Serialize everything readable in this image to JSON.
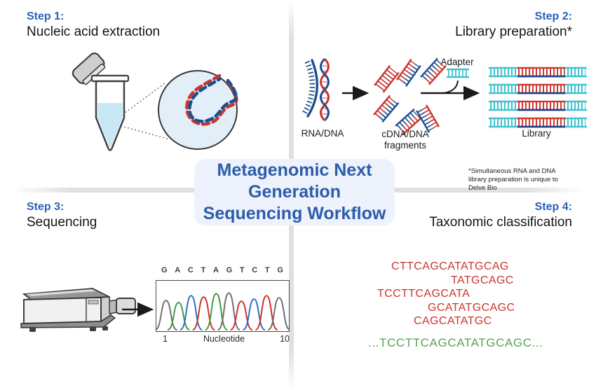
{
  "workflow": {
    "title_lines": [
      "Metagenomic Next",
      "Generation",
      "Sequencing Workflow"
    ],
    "accent_color": "#2a62b8",
    "card_bg": "#edf2fc"
  },
  "steps": {
    "step1": {
      "label": "Step 1:",
      "title": "Nucleic acid extraction"
    },
    "step2": {
      "label": "Step 2:",
      "title": "Library preparation*",
      "items": {
        "rna_dna": "RNA/DNA",
        "fragments": "cDNA/DNA fragments",
        "adapter": "Adapter",
        "library": "Library"
      },
      "footnote": "*Simultaneous RNA and DNA library preparation is unique to Delve Bio"
    },
    "step3": {
      "label": "Step 3:",
      "title": "Sequencing",
      "chromatogram": {
        "sequence": [
          "G",
          "A",
          "C",
          "T",
          "A",
          "G",
          "T",
          "C",
          "T",
          "G"
        ],
        "base_colors": {
          "G": "#6e6e6e",
          "A": "#3f9b3f",
          "C": "#2e6fc2",
          "T": "#cf2f2f"
        },
        "peak_heights": [
          43,
          40,
          50,
          48,
          53,
          54,
          42,
          45,
          50,
          47
        ],
        "x_start_label": "1",
        "x_axis_label": "Nucleotide",
        "x_end_label": "10"
      }
    },
    "step4": {
      "label": "Step 4:",
      "title": "Taxonomic classification",
      "reads": [
        "CTTCAGCATATGCAG",
        "TATGCAGC",
        "TCCTTCAGCATA",
        "GCATATGCAGC",
        "CAGCATATGC"
      ],
      "consensus": "...TCCTTCAGCATATGCAGC...",
      "read_color": "#c9362e",
      "consensus_color": "#56a651"
    }
  },
  "palette": {
    "dna_red": "#c8372f",
    "dna_blue": "#1c4f8f",
    "adapter_cyan": "#3fc3ce",
    "library_navy": "#20408c",
    "divider_gray": "#e0e0e0",
    "liquid_blue": "#c9e8f5"
  }
}
